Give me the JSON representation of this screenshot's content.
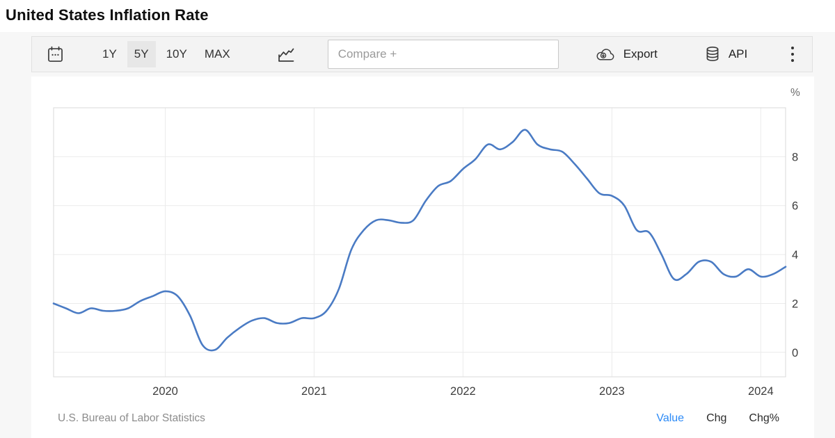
{
  "header": {
    "title": "United States Inflation Rate"
  },
  "toolbar": {
    "ranges": [
      {
        "label": "1Y",
        "active": false
      },
      {
        "label": "5Y",
        "active": true
      },
      {
        "label": "10Y",
        "active": false
      },
      {
        "label": "MAX",
        "active": false
      }
    ],
    "compare_placeholder": "Compare +",
    "export_label": "Export",
    "api_label": "API",
    "icons": {
      "calendar": "calendar-icon",
      "chart_type": "line-chart-icon",
      "export": "cloud-download-icon",
      "api": "database-icon",
      "more": "kebab-menu-icon"
    }
  },
  "footer": {
    "source": "U.S. Bureau of Labor Statistics",
    "links": [
      {
        "label": "Value",
        "active": true
      },
      {
        "label": "Chg",
        "active": false
      },
      {
        "label": "Chg%",
        "active": false
      }
    ]
  },
  "colors": {
    "line": "#4a7bc4",
    "active_link": "#2b8af7",
    "grid": "#ebebeb"
  },
  "chart_data": {
    "type": "line",
    "title": "United States Inflation Rate",
    "unit": "%",
    "source": "U.S. Bureau of Labor Statistics",
    "x": [
      "2019-04",
      "2019-05",
      "2019-06",
      "2019-07",
      "2019-08",
      "2019-09",
      "2019-10",
      "2019-11",
      "2019-12",
      "2020-01",
      "2020-02",
      "2020-03",
      "2020-04",
      "2020-05",
      "2020-06",
      "2020-07",
      "2020-08",
      "2020-09",
      "2020-10",
      "2020-11",
      "2020-12",
      "2021-01",
      "2021-02",
      "2021-03",
      "2021-04",
      "2021-05",
      "2021-06",
      "2021-07",
      "2021-08",
      "2021-09",
      "2021-10",
      "2021-11",
      "2021-12",
      "2022-01",
      "2022-02",
      "2022-03",
      "2022-04",
      "2022-05",
      "2022-06",
      "2022-07",
      "2022-08",
      "2022-09",
      "2022-10",
      "2022-11",
      "2022-12",
      "2023-01",
      "2023-02",
      "2023-03",
      "2023-04",
      "2023-05",
      "2023-06",
      "2023-07",
      "2023-08",
      "2023-09",
      "2023-10",
      "2023-11",
      "2023-12",
      "2024-01",
      "2024-02",
      "2024-03"
    ],
    "values": [
      2.0,
      1.8,
      1.6,
      1.8,
      1.7,
      1.7,
      1.8,
      2.1,
      2.3,
      2.5,
      2.3,
      1.5,
      0.3,
      0.1,
      0.6,
      1.0,
      1.3,
      1.4,
      1.2,
      1.2,
      1.4,
      1.4,
      1.7,
      2.6,
      4.2,
      5.0,
      5.4,
      5.4,
      5.3,
      5.4,
      6.2,
      6.8,
      7.0,
      7.5,
      7.9,
      8.5,
      8.3,
      8.6,
      9.1,
      8.5,
      8.3,
      8.2,
      7.7,
      7.1,
      6.5,
      6.4,
      6.0,
      5.0,
      4.9,
      4.0,
      3.0,
      3.2,
      3.7,
      3.7,
      3.2,
      3.1,
      3.4,
      3.1,
      3.2,
      3.5
    ],
    "x_tick_labels": [
      "2020",
      "2021",
      "2022",
      "2023",
      "2024"
    ],
    "x_tick_indices": [
      9,
      21,
      33,
      45,
      57
    ],
    "y_ticks": [
      0,
      2,
      4,
      6,
      8
    ],
    "ylim": [
      -1,
      10
    ],
    "grid": true,
    "legend": "none",
    "line_color": "#4a7bc4",
    "smooth": true
  }
}
